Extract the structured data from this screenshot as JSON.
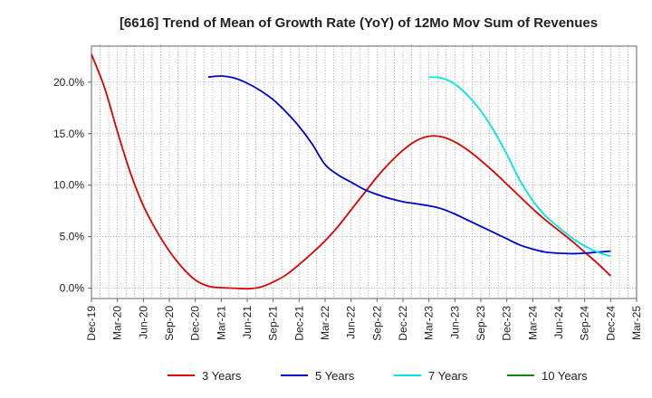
{
  "chart_data": {
    "type": "line",
    "title": "[6616]  Trend of Mean of Growth Rate (YoY) of 12Mo Mov Sum of Revenues",
    "xlabel": "",
    "ylabel": "",
    "x_ticks": [
      "Dec-19",
      "Mar-20",
      "Jun-20",
      "Sep-20",
      "Dec-20",
      "Mar-21",
      "Jun-21",
      "Sep-21",
      "Dec-21",
      "Mar-22",
      "Jun-22",
      "Sep-22",
      "Dec-22",
      "Mar-23",
      "Jun-23",
      "Sep-23",
      "Dec-23",
      "Mar-24",
      "Jun-24",
      "Sep-24",
      "Dec-24",
      "Mar-25"
    ],
    "y_ticks": [
      0.0,
      5.0,
      10.0,
      15.0,
      20.0
    ],
    "y_tick_labels": [
      "0.0%",
      "5.0%",
      "10.0%",
      "15.0%",
      "20.0%"
    ],
    "ylim": [
      -1.0,
      23.5
    ],
    "xlim": [
      0,
      21
    ],
    "grid": true,
    "legend_position": "bottom",
    "series": [
      {
        "name": "3 Years",
        "color": "#dd0000",
        "x": [
          0,
          0.5,
          1,
          1.5,
          2,
          2.5,
          3,
          3.5,
          4,
          4.5,
          5,
          5.5,
          6,
          6.5,
          7,
          7.5,
          8,
          8.5,
          9,
          9.5,
          10,
          10.5,
          11,
          11.5,
          12,
          12.5,
          13,
          13.5,
          14,
          14.5,
          15,
          15.5,
          16,
          16.5,
          17,
          17.5,
          18,
          18.5,
          19,
          19.5,
          20
        ],
        "values": [
          22.7,
          19.5,
          15.2,
          11.2,
          8.0,
          5.6,
          3.6,
          2.0,
          0.8,
          0.2,
          0.05,
          0.0,
          -0.05,
          0.1,
          0.6,
          1.3,
          2.3,
          3.4,
          4.6,
          6.0,
          7.6,
          9.2,
          10.8,
          12.2,
          13.4,
          14.3,
          14.75,
          14.7,
          14.2,
          13.4,
          12.4,
          11.3,
          10.1,
          8.9,
          7.7,
          6.6,
          5.6,
          4.6,
          3.5,
          2.4,
          1.2
        ]
      },
      {
        "name": "5 Years",
        "color": "#0000cc",
        "x": [
          4.5,
          5,
          5.5,
          6,
          6.5,
          7,
          7.5,
          8,
          8.5,
          9,
          9.5,
          10,
          10.5,
          11,
          11.5,
          12,
          12.5,
          13,
          13.5,
          14,
          14.5,
          15,
          15.5,
          16,
          16.5,
          17,
          17.5,
          18,
          18.5,
          19,
          19.5,
          20
        ],
        "values": [
          20.5,
          20.6,
          20.4,
          19.9,
          19.2,
          18.3,
          17.1,
          15.7,
          14.0,
          12.0,
          11.0,
          10.3,
          9.6,
          9.1,
          8.7,
          8.4,
          8.2,
          8.0,
          7.7,
          7.2,
          6.6,
          6.0,
          5.4,
          4.8,
          4.2,
          3.8,
          3.5,
          3.4,
          3.35,
          3.4,
          3.5,
          3.6
        ]
      },
      {
        "name": "7 Years",
        "color": "#00e5e5",
        "x": [
          13,
          13.5,
          14,
          14.5,
          15,
          15.5,
          16,
          16.5,
          17,
          17.5,
          18,
          18.5,
          19,
          19.5,
          20
        ],
        "values": [
          20.5,
          20.4,
          19.8,
          18.7,
          17.2,
          15.3,
          13.0,
          10.5,
          8.5,
          7.0,
          5.9,
          4.9,
          4.1,
          3.5,
          3.1
        ]
      },
      {
        "name": "10 Years",
        "color": "#118811",
        "x": [],
        "values": []
      }
    ]
  }
}
